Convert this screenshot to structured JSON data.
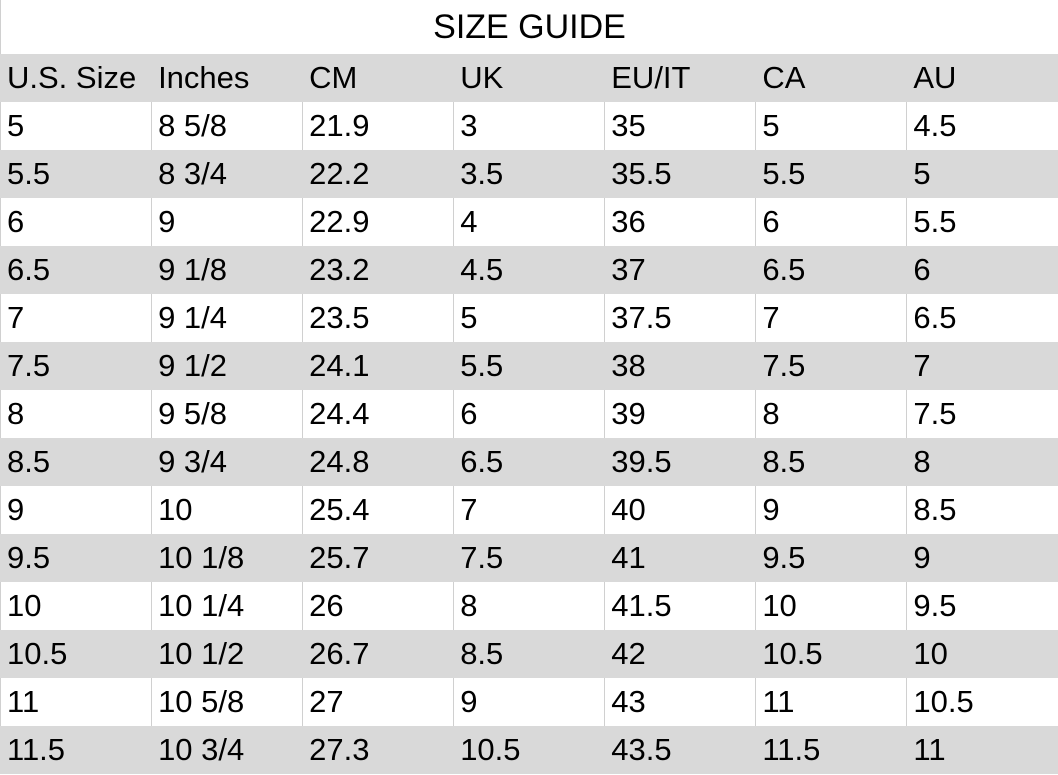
{
  "title": "SIZE GUIDE",
  "headers": [
    "U.S. Size",
    "Inches",
    "CM",
    "UK",
    "EU/IT",
    "CA",
    "AU"
  ],
  "rows": [
    [
      "5",
      "8 5/8",
      "21.9",
      "3",
      "35",
      "5",
      "4.5"
    ],
    [
      "5.5",
      "8 3/4",
      "22.2",
      "3.5",
      "35.5",
      "5.5",
      "5"
    ],
    [
      "6",
      "9",
      "22.9",
      "4",
      "36",
      "6",
      "5.5"
    ],
    [
      "6.5",
      "9 1/8",
      "23.2",
      "4.5",
      "37",
      "6.5",
      "6"
    ],
    [
      "7",
      "9 1/4",
      "23.5",
      "5",
      "37.5",
      "7",
      "6.5"
    ],
    [
      "7.5",
      "9 1/2",
      "24.1",
      "5.5",
      "38",
      "7.5",
      "7"
    ],
    [
      "8",
      "9 5/8",
      "24.4",
      "6",
      "39",
      "8",
      "7.5"
    ],
    [
      "8.5",
      "9 3/4",
      "24.8",
      "6.5",
      "39.5",
      "8.5",
      "8"
    ],
    [
      "9",
      "10",
      "25.4",
      "7",
      "40",
      "9",
      "8.5"
    ],
    [
      "9.5",
      "10 1/8",
      "25.7",
      "7.5",
      "41",
      "9.5",
      "9"
    ],
    [
      "10",
      "10 1/4",
      "26",
      "8",
      "41.5",
      "10",
      "9.5"
    ],
    [
      "10.5",
      "10 1/2",
      "26.7",
      "8.5",
      "42",
      "10.5",
      "10"
    ],
    [
      "11",
      "10 5/8",
      "27",
      "9",
      "43",
      "11",
      "10.5"
    ],
    [
      "11.5",
      "10 3/4",
      "27.3",
      "10.5",
      "43.5",
      "11.5",
      "11"
    ]
  ],
  "colors": {
    "stripe": "#d9d9d9",
    "border": "#d0d0d0"
  }
}
